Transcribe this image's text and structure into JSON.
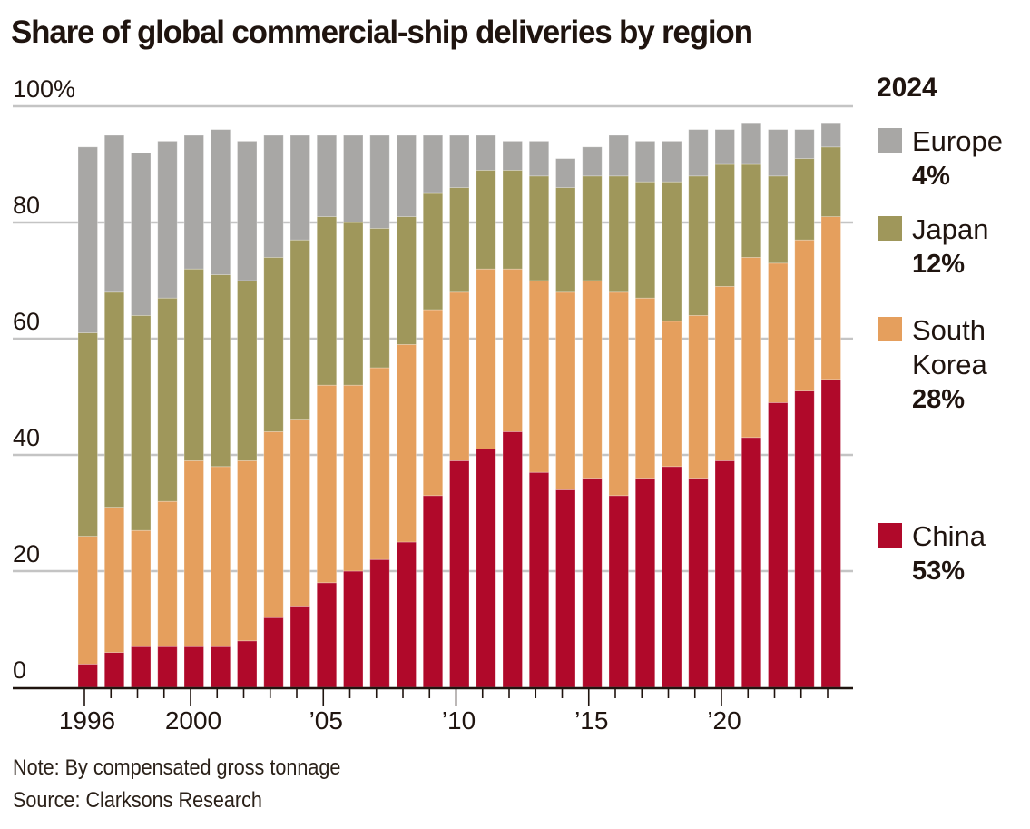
{
  "title": "Share of global commercial-ship deliveries by region",
  "note": "Note: By compensated gross tonnage",
  "source": "Source: Clarksons Research",
  "legend": {
    "year": "2024",
    "items": [
      {
        "name": "Europe",
        "value": "4%",
        "color": "#a8a7a5"
      },
      {
        "name": "Japan",
        "value": "12%",
        "color": "#9f975b"
      },
      {
        "name": "South Korea",
        "value": "28%",
        "color": "#e59f5d"
      },
      {
        "name": "China",
        "value": "53%",
        "color": "#b0092a"
      }
    ]
  },
  "chart_data": {
    "type": "bar",
    "stacked": true,
    "title": "Share of global commercial-ship deliveries by region",
    "xlabel": "",
    "ylabel": "",
    "ylim": [
      0,
      100
    ],
    "y_ticks": [
      0,
      20,
      40,
      60,
      80,
      100
    ],
    "y_tick_labels": [
      "0",
      "20",
      "40",
      "60",
      "80",
      "100%"
    ],
    "grid": true,
    "legend_position": "right",
    "categories": [
      1996,
      1997,
      1998,
      1999,
      2000,
      2001,
      2002,
      2003,
      2004,
      2005,
      2006,
      2007,
      2008,
      2009,
      2010,
      2011,
      2012,
      2013,
      2014,
      2015,
      2016,
      2017,
      2018,
      2019,
      2020,
      2021,
      2022,
      2023,
      2024
    ],
    "x_tick_labels": [
      {
        "year": 1996,
        "label": "1996"
      },
      {
        "year": 2000,
        "label": "2000"
      },
      {
        "year": 2005,
        "label": "’05"
      },
      {
        "year": 2010,
        "label": "’10"
      },
      {
        "year": 2015,
        "label": "’15"
      },
      {
        "year": 2020,
        "label": "’20"
      }
    ],
    "series": [
      {
        "name": "China",
        "color": "#b0092a",
        "values": [
          4,
          6,
          7,
          7,
          7,
          7,
          8,
          12,
          14,
          18,
          20,
          22,
          25,
          33,
          39,
          41,
          44,
          37,
          34,
          36,
          33,
          36,
          38,
          36,
          39,
          43,
          49,
          51,
          53
        ]
      },
      {
        "name": "South Korea",
        "color": "#e59f5d",
        "values": [
          22,
          25,
          20,
          25,
          32,
          31,
          31,
          32,
          32,
          34,
          32,
          33,
          34,
          32,
          29,
          31,
          28,
          33,
          34,
          34,
          35,
          31,
          25,
          28,
          30,
          31,
          24,
          26,
          28
        ]
      },
      {
        "name": "Japan",
        "color": "#9f975b",
        "values": [
          35,
          37,
          37,
          35,
          33,
          33,
          31,
          30,
          31,
          29,
          28,
          24,
          22,
          20,
          18,
          17,
          17,
          18,
          18,
          18,
          20,
          20,
          24,
          24,
          21,
          16,
          15,
          14,
          12
        ]
      },
      {
        "name": "Europe",
        "color": "#a8a7a5",
        "values": [
          32,
          27,
          28,
          27,
          23,
          25,
          24,
          21,
          18,
          14,
          15,
          16,
          14,
          10,
          9,
          6,
          5,
          6,
          5,
          5,
          7,
          7,
          7,
          8,
          6,
          7,
          8,
          5,
          4
        ]
      }
    ]
  }
}
